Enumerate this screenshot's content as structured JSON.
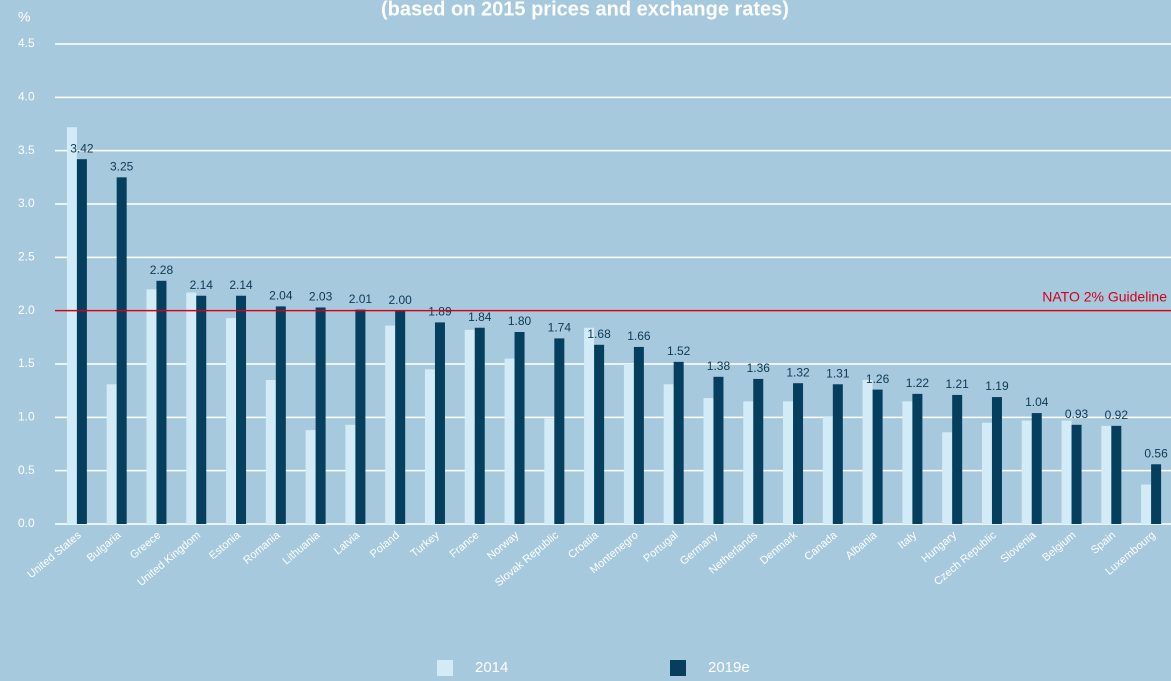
{
  "chart_data": {
    "type": "bar",
    "title": "(based on 2015 prices and exchange rates)",
    "y_label": "%",
    "categories": [
      "United States",
      "Bulgaria",
      "Greece",
      "United Kingdom",
      "Estonia",
      "Romania",
      "Lithuania",
      "Latvia",
      "Poland",
      "Turkey",
      "France",
      "Norway",
      "Slovak Republic",
      "Croatia",
      "Montenegro",
      "Portugal",
      "Germany",
      "Netherlands",
      "Denmark",
      "Canada",
      "Albania",
      "Italy",
      "Hungary",
      "Czech Republic",
      "Slovenia",
      "Belgium",
      "Spain",
      "Luxembourg"
    ],
    "series": [
      {
        "name": "2014",
        "color": "#d3ebf6",
        "values": [
          3.72,
          1.31,
          2.2,
          2.17,
          1.93,
          1.35,
          0.88,
          0.93,
          1.86,
          1.45,
          1.82,
          1.55,
          0.99,
          1.84,
          1.5,
          1.31,
          1.18,
          1.15,
          1.15,
          1.01,
          1.35,
          1.15,
          0.86,
          0.95,
          0.97,
          0.97,
          0.92,
          0.37
        ]
      },
      {
        "name": "2019e",
        "color": "#063f5e",
        "values": [
          3.42,
          3.25,
          2.28,
          2.14,
          2.14,
          2.04,
          2.03,
          2.01,
          2.0,
          1.89,
          1.84,
          1.8,
          1.74,
          1.68,
          1.66,
          1.52,
          1.38,
          1.36,
          1.32,
          1.31,
          1.26,
          1.22,
          1.21,
          1.19,
          1.04,
          0.93,
          0.92,
          0.56
        ],
        "value_labels": [
          "3.42",
          "3.25",
          "2.28",
          "2.14",
          "2.14",
          "2.04",
          "2.03",
          "2.01",
          "2.00",
          "1.89",
          "1.84",
          "1.80",
          "1.74",
          "1.68",
          "1.66",
          "1.52",
          "1.38",
          "1.36",
          "1.32",
          "1.31",
          "1.26",
          "1.22",
          "1.21",
          "1.19",
          "1.04",
          "0.93",
          "0.92",
          "0.56"
        ]
      }
    ],
    "ylim": [
      0,
      4.5
    ],
    "yticks": [
      {
        "value": 0,
        "label": "0.0"
      },
      {
        "value": 0.5,
        "label": "0.5"
      },
      {
        "value": 1,
        "label": "1.0"
      },
      {
        "value": 1.5,
        "label": "1.5"
      },
      {
        "value": 2,
        "label": "2.0"
      },
      {
        "value": 2.5,
        "label": "2.5"
      },
      {
        "value": 3,
        "label": "3.0"
      },
      {
        "value": 3.5,
        "label": "3.5"
      },
      {
        "value": 4,
        "label": "4.0"
      },
      {
        "value": 4.5,
        "label": "4.5"
      }
    ],
    "grid": true,
    "reference_line": {
      "text": "NATO 2% Guideline",
      "value": 2,
      "color": "#d0021b"
    },
    "legend": "bottom"
  }
}
